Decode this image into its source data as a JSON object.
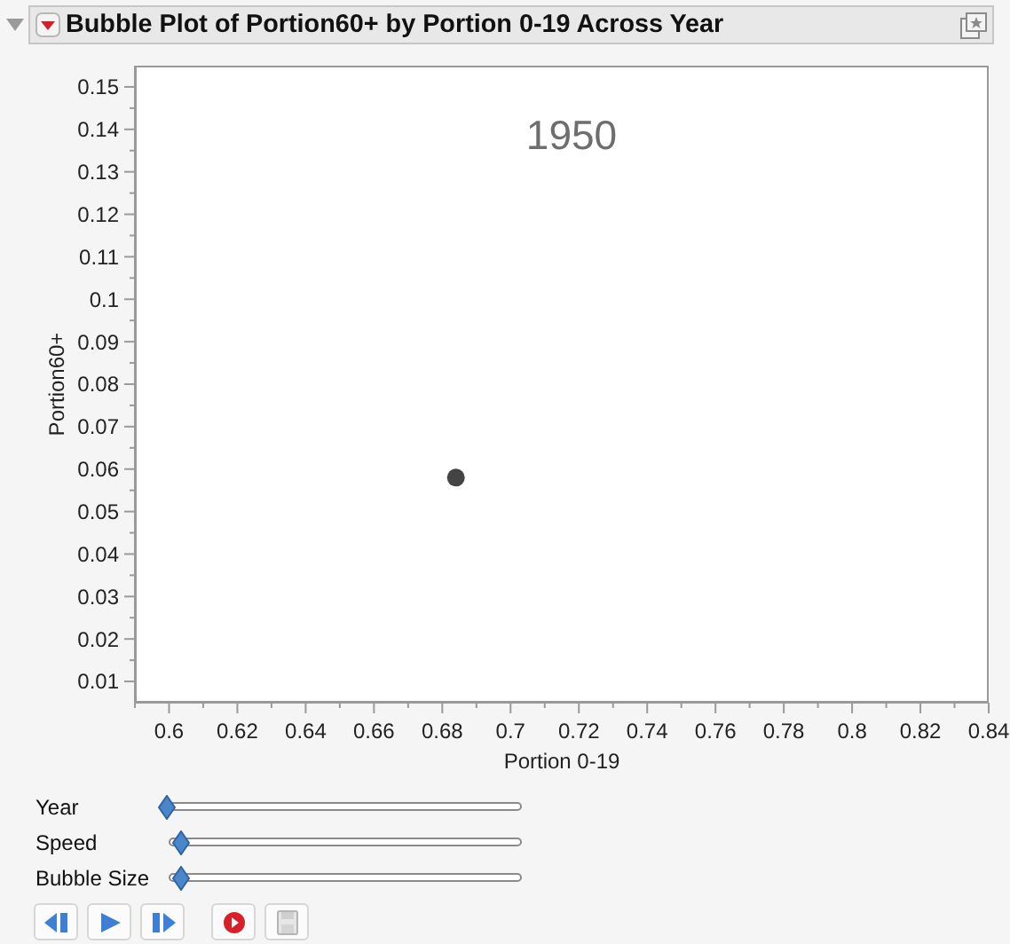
{
  "chart_data": {
    "type": "bubble",
    "title": "Bubble Plot of Portion60+ by Portion 0-19 Across Year",
    "xlabel": "Portion 0-19",
    "ylabel": "Portion60+",
    "annotations": [
      "1950",
      "Year",
      "Speed",
      "Bubble Size"
    ],
    "x": [
      0.684
    ],
    "values": [
      0.058
    ],
    "sizes": [
      1
    ],
    "color": "#444444",
    "xlim": [
      0.59,
      0.84
    ],
    "ylim": [
      0.005,
      0.155
    ],
    "xticks": [
      {
        "value": 0.59,
        "label": null
      },
      0.6,
      {
        "value": 0.61,
        "label": null
      },
      0.62,
      {
        "value": 0.63,
        "label": null
      },
      0.64,
      {
        "value": 0.65,
        "label": null
      },
      0.66,
      {
        "value": 0.67,
        "label": null
      },
      0.68,
      {
        "value": 0.69,
        "label": null
      },
      0.7,
      {
        "value": 0.71,
        "label": null
      },
      0.72,
      {
        "value": 0.73,
        "label": null
      },
      0.74,
      {
        "value": 0.75,
        "label": null
      },
      0.76,
      {
        "value": 0.77,
        "label": null
      },
      0.78,
      {
        "value": 0.79,
        "label": null
      },
      0.8,
      {
        "value": 0.81,
        "label": null
      },
      0.82,
      {
        "value": 0.83,
        "label": null
      },
      0.84
    ],
    "yticks": [
      0.01,
      {
        "value": 0.015,
        "label": null
      },
      0.02,
      {
        "value": 0.025,
        "label": null
      },
      0.03,
      {
        "value": 0.035,
        "label": null
      },
      0.04,
      {
        "value": 0.045,
        "label": null
      },
      0.05,
      {
        "value": 0.055,
        "label": null
      },
      0.06,
      {
        "value": 0.065,
        "label": null
      },
      0.07,
      {
        "value": 0.075,
        "label": null
      },
      0.08,
      {
        "value": 0.085,
        "label": null
      },
      0.09,
      {
        "value": 0.095,
        "label": null
      },
      0.1,
      {
        "value": 0.105,
        "label": null
      },
      0.11,
      {
        "value": 0.115,
        "label": null
      },
      0.12,
      {
        "value": 0.125,
        "label": null
      },
      0.13,
      {
        "value": 0.135,
        "label": null
      },
      0.14,
      {
        "value": 0.145,
        "label": null
      },
      0.15
    ]
  }
}
